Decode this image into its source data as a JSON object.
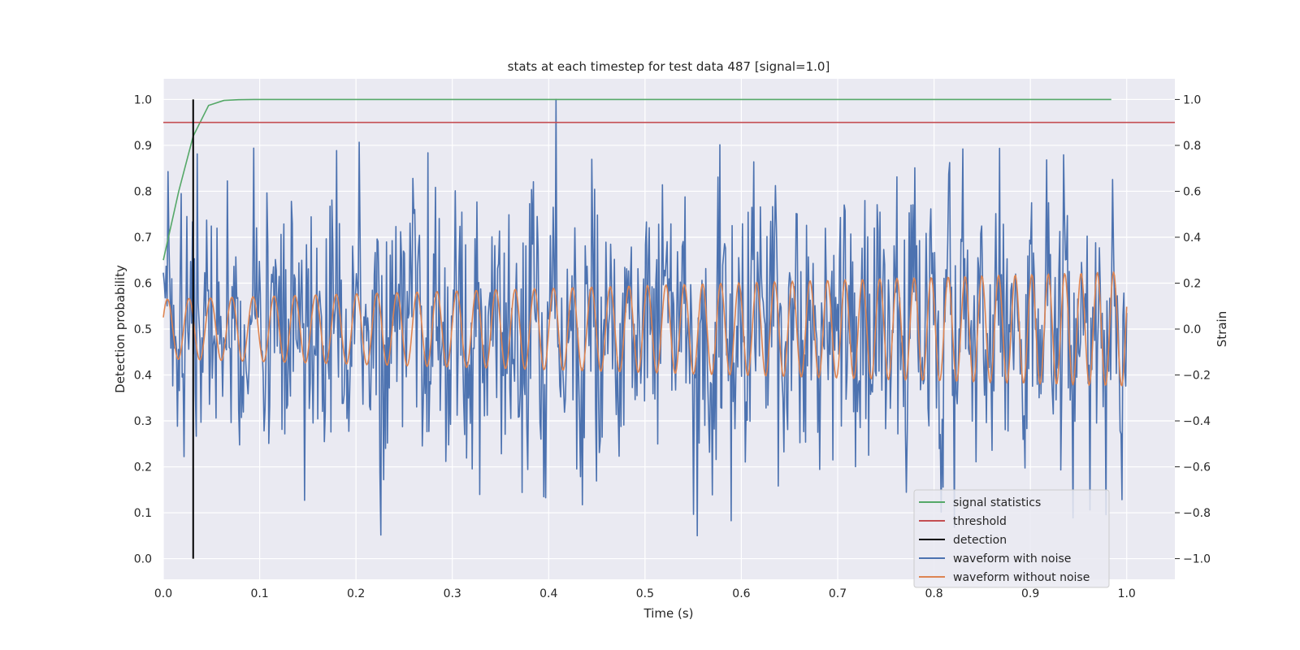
{
  "chart_data": {
    "type": "line",
    "title": "stats at each timestep for test data 487 [signal=1.0]",
    "xlabel": "Time (s)",
    "ylabel_left": "Detection probability",
    "ylabel_right": "Strain",
    "xlim": [
      0.0,
      1.05
    ],
    "ylim_left": [
      -0.045,
      1.045
    ],
    "ylim_right": [
      -1.09,
      1.09
    ],
    "x_ticks": [
      "0.0",
      "0.1",
      "0.2",
      "0.3",
      "0.4",
      "0.5",
      "0.6",
      "0.7",
      "0.8",
      "0.9",
      "1.0"
    ],
    "y_ticks_left": [
      "0.0",
      "0.1",
      "0.2",
      "0.3",
      "0.4",
      "0.5",
      "0.6",
      "0.7",
      "0.8",
      "0.9",
      "1.0"
    ],
    "y_ticks_right": [
      "−1.0",
      "−0.8",
      "−0.6",
      "−0.4",
      "−0.2",
      "0.0",
      "0.2",
      "0.4",
      "0.6",
      "0.8",
      "1.0"
    ],
    "grid": true,
    "legend_position": "bottom-right",
    "series": [
      {
        "name": "signal statistics",
        "color": "#55a868",
        "axis": "left",
        "x": [
          0.0,
          0.016,
          0.031,
          0.047,
          0.063,
          0.078,
          0.094,
          0.2,
          0.4,
          0.6,
          0.8,
          0.984
        ],
        "y": [
          0.65,
          0.8,
          0.92,
          0.987,
          0.998,
          0.9995,
          1.0,
          1.0,
          1.0,
          1.0,
          1.0,
          1.0
        ]
      },
      {
        "name": "threshold",
        "color": "#c44e52",
        "axis": "left",
        "x": [
          0.0,
          1.05
        ],
        "y": [
          0.95,
          0.95
        ]
      },
      {
        "name": "detection",
        "color": "#000000",
        "axis": "left",
        "x": [
          0.031,
          0.031
        ],
        "y": [
          0.0,
          1.0
        ]
      },
      {
        "name": "waveform with noise",
        "color": "#4c72b0",
        "axis": "right",
        "x_range": [
          0.0,
          1.0
        ],
        "points": 1024,
        "y_min": -0.9,
        "y_max": 1.0
      },
      {
        "name": "waveform without noise",
        "color": "#dd8452",
        "axis": "right",
        "x_range": [
          0.0,
          1.0
        ],
        "points": 1024,
        "amplitude_start": 0.13,
        "amplitude_end": 0.25,
        "cycles": 52
      }
    ]
  },
  "colors": {
    "plot_background": "#eaeaf2",
    "grid": "#ffffff"
  }
}
